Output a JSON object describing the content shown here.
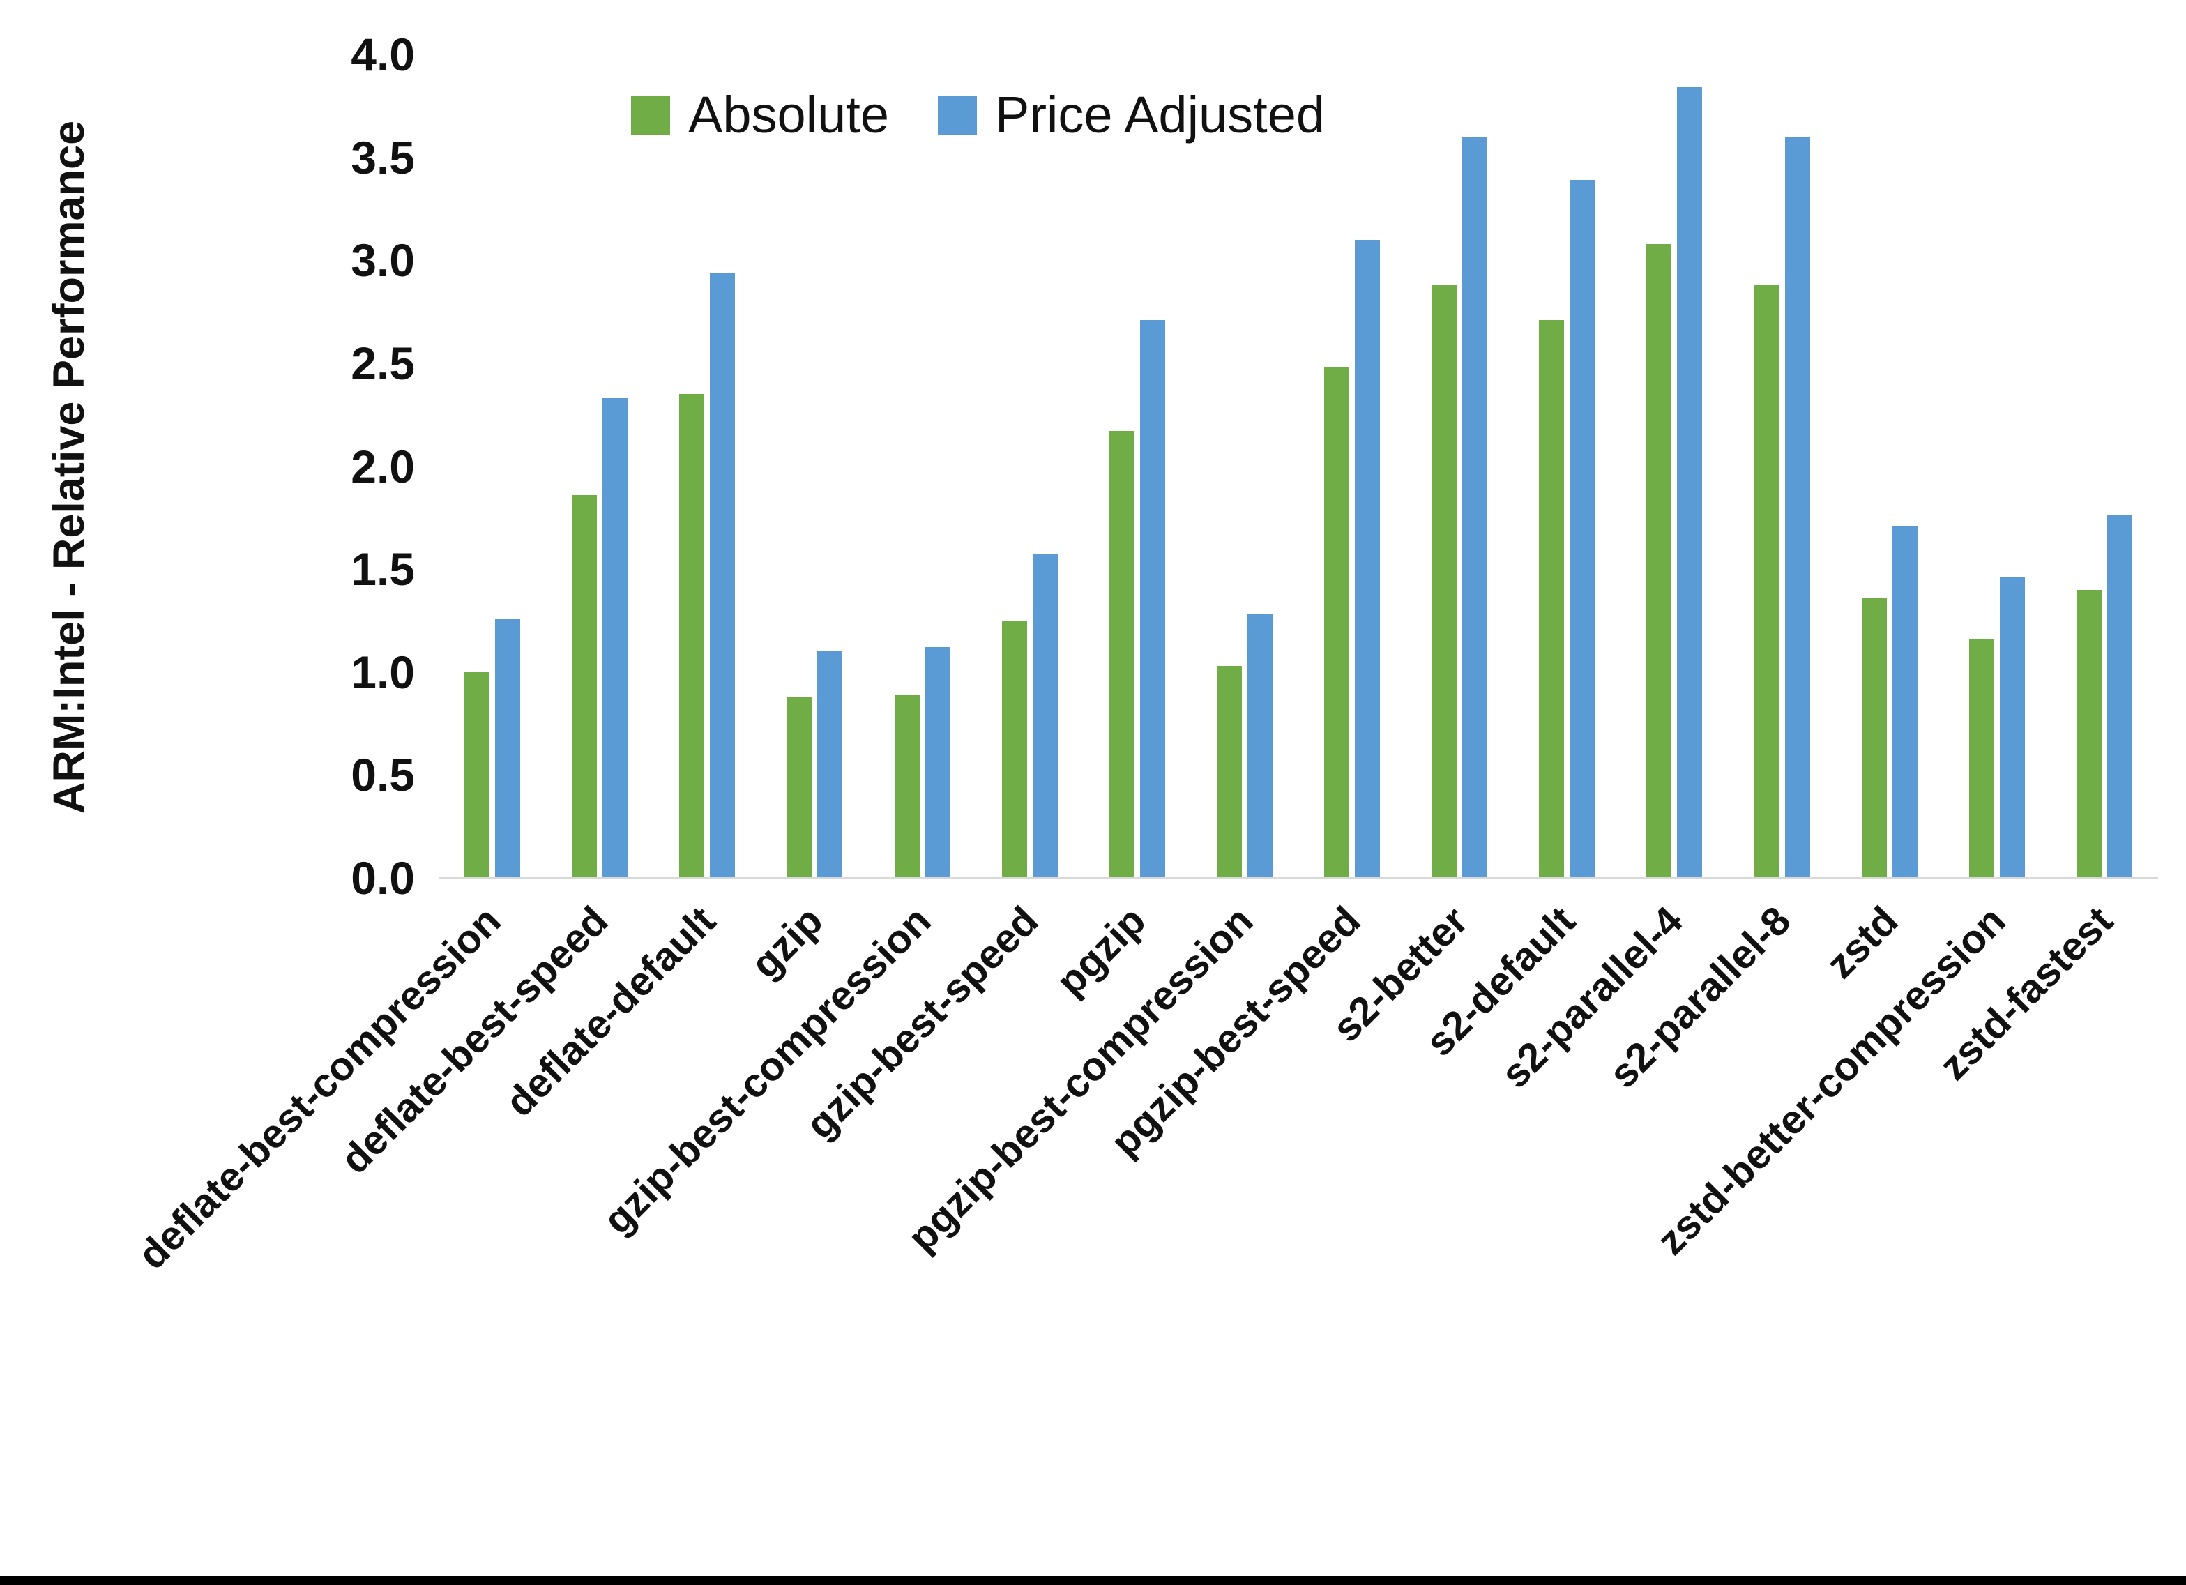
{
  "figure": {
    "background_color": "#ffffff",
    "bottom_border_color": "#000000",
    "axis_line_color": "#d9d9d9",
    "text_color": "#111111"
  },
  "chart_data": {
    "type": "bar",
    "title": "",
    "xlabel": "",
    "ylabel": "ARM:Intel - Relative Performance",
    "ylim": [
      0.0,
      4.0
    ],
    "ytick_step": 0.5,
    "yticks": [
      "4.0",
      "3.5",
      "3.0",
      "2.5",
      "2.0",
      "1.5",
      "1.0",
      "0.5",
      "0.0"
    ],
    "grid": false,
    "legend_position": "top-center",
    "categories": [
      "deflate-best-compression",
      "deflate-best-speed",
      "deflate-default",
      "gzip",
      "gzip-best-compression",
      "gzip-best-speed",
      "pgzip",
      "pgzip-best-compression",
      "pgzip-best-speed",
      "s2-better",
      "s2-default",
      "s2-parallel-4",
      "s2-parallel-8",
      "zstd",
      "zstd-better-compression",
      "zstd-fastest"
    ],
    "series": [
      {
        "name": "Absolute",
        "color": "#70AD47",
        "values": [
          1.0,
          1.86,
          2.35,
          0.88,
          0.89,
          1.25,
          2.17,
          1.03,
          2.48,
          2.88,
          2.71,
          3.08,
          2.88,
          1.36,
          1.16,
          1.4
        ]
      },
      {
        "name": "Price Adjusted",
        "color": "#5B9BD5",
        "values": [
          1.26,
          2.33,
          2.94,
          1.1,
          1.12,
          1.57,
          2.71,
          1.28,
          3.1,
          3.6,
          3.39,
          3.84,
          3.6,
          1.71,
          1.46,
          1.76
        ]
      }
    ]
  }
}
